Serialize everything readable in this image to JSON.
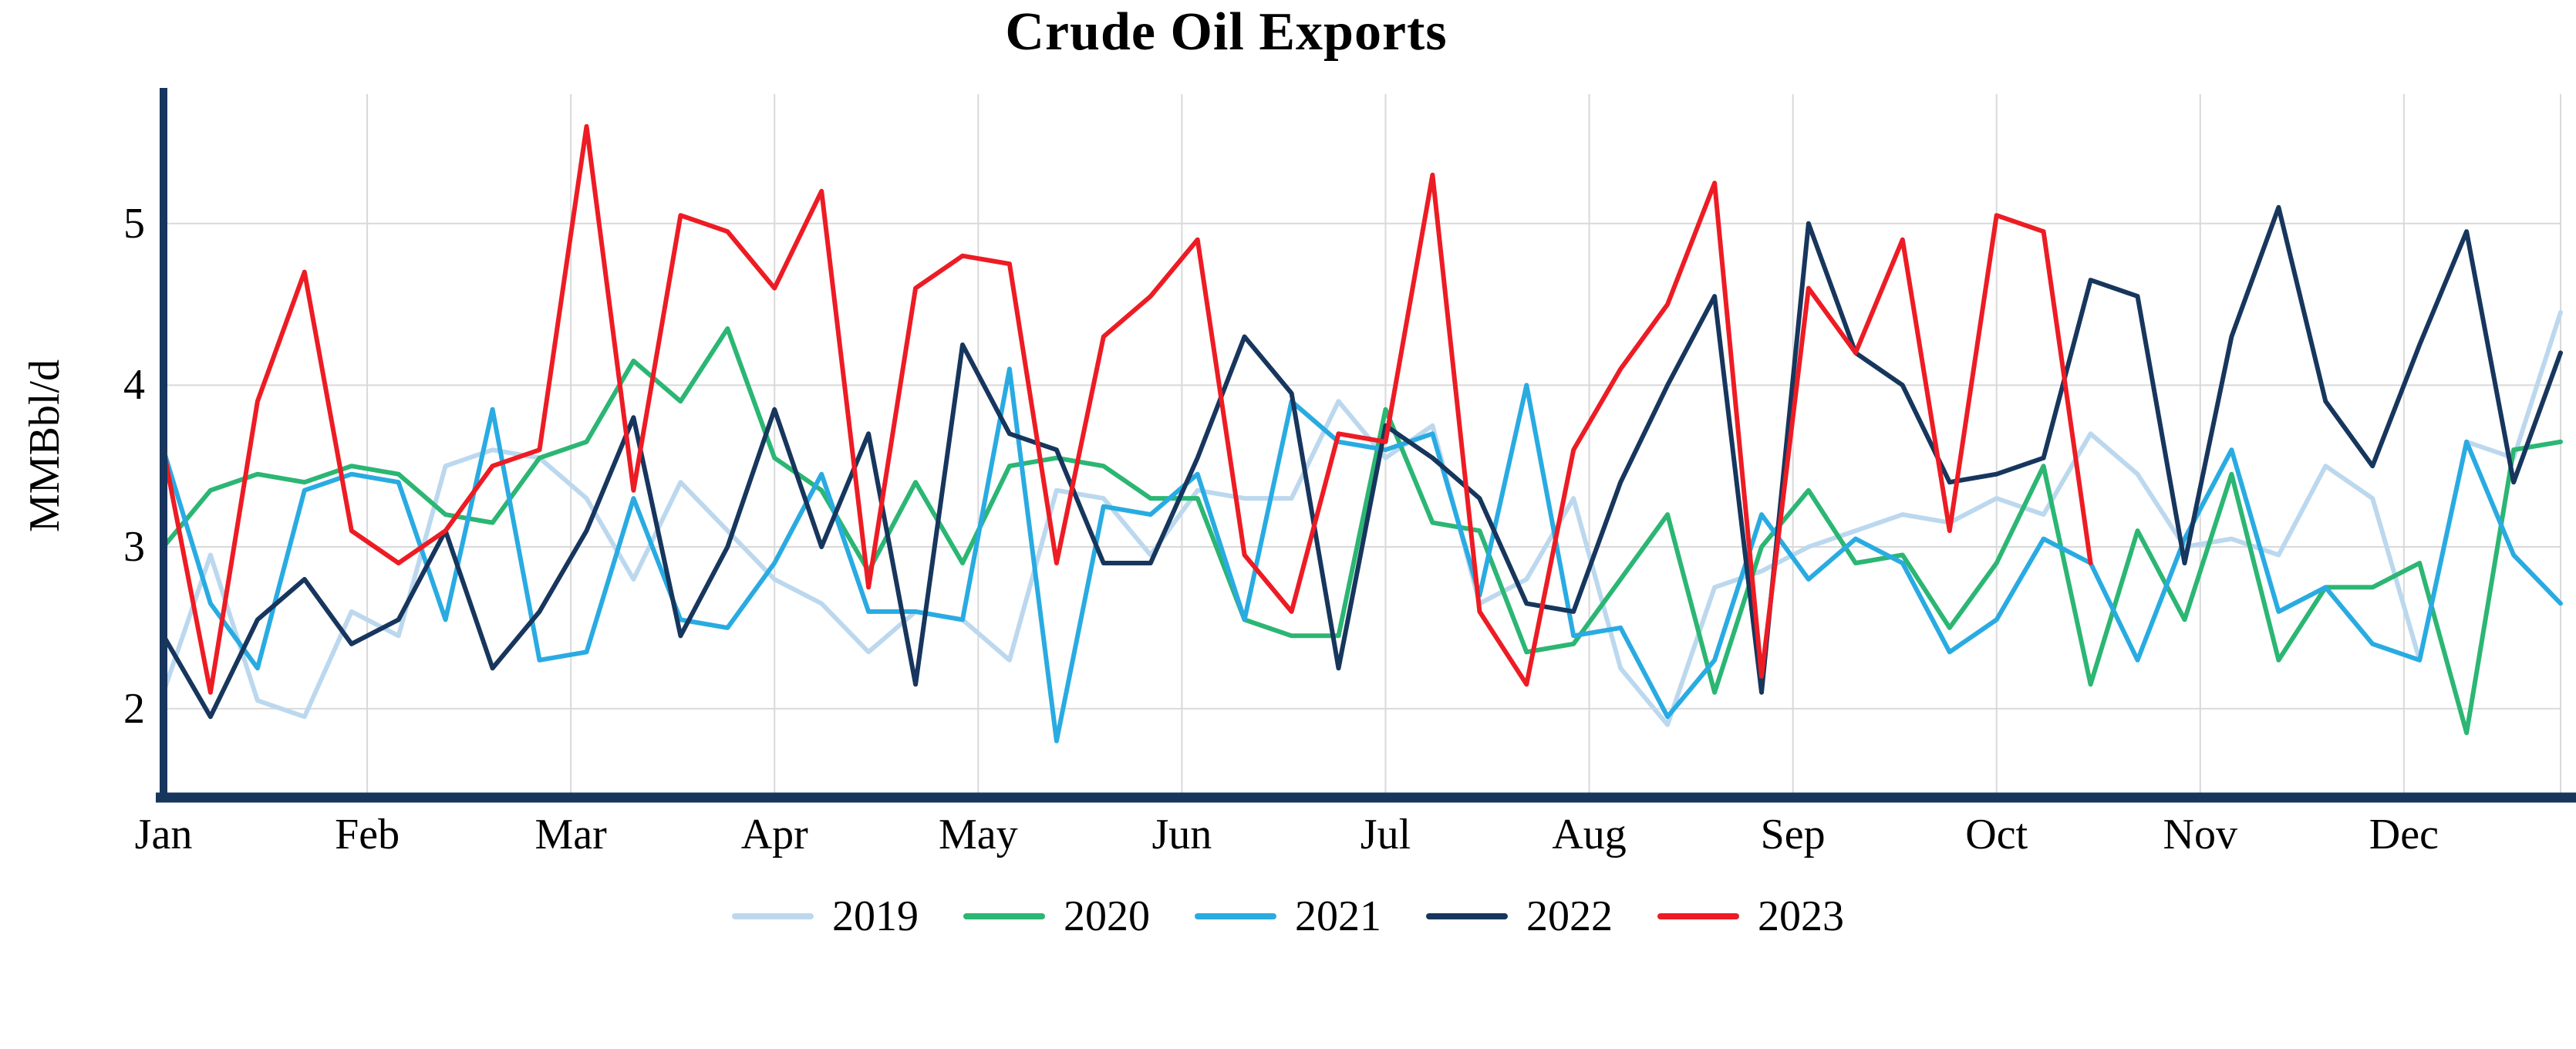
{
  "chart_data": {
    "type": "line",
    "title": "Crude Oil Exports",
    "ylabel": "MMBbl/d",
    "xlabel": "",
    "x_unit": "weekly",
    "n_weeks": 52,
    "x_ticklabels": [
      "Jan",
      "Feb",
      "Mar",
      "Apr",
      "May",
      "Jun",
      "Jul",
      "Aug",
      "Sep",
      "Oct",
      "Nov",
      "Dec"
    ],
    "yticks": [
      2,
      3,
      4,
      5
    ],
    "ylim": [
      1.45,
      5.8
    ],
    "grid": true,
    "legend_position": "bottom",
    "axis_color": "#17365d",
    "grid_color": "#d9d9d9",
    "series": [
      {
        "name": "2019",
        "color": "#bcd8ee",
        "values": [
          2.1,
          2.95,
          2.05,
          1.95,
          2.6,
          2.45,
          3.5,
          3.6,
          3.55,
          3.3,
          2.8,
          3.4,
          3.1,
          2.8,
          2.65,
          2.35,
          2.6,
          2.55,
          2.3,
          3.35,
          3.3,
          2.95,
          3.35,
          3.3,
          3.3,
          3.9,
          3.55,
          3.75,
          2.65,
          2.8,
          3.3,
          2.25,
          1.9,
          2.75,
          2.85,
          3.0,
          3.1,
          3.2,
          3.15,
          3.3,
          3.2,
          3.7,
          3.45,
          3.0,
          3.05,
          2.95,
          3.5,
          3.3,
          2.3,
          3.65,
          3.55,
          4.45
        ]
      },
      {
        "name": "2020",
        "color": "#2bb673",
        "values": [
          3.0,
          3.35,
          3.45,
          3.4,
          3.5,
          3.45,
          3.2,
          3.15,
          3.55,
          3.65,
          4.15,
          3.9,
          4.35,
          3.55,
          3.35,
          2.85,
          3.4,
          2.9,
          3.5,
          3.55,
          3.5,
          3.3,
          3.3,
          2.55,
          2.45,
          2.45,
          3.85,
          3.15,
          3.1,
          2.35,
          2.4,
          2.8,
          3.2,
          2.1,
          3.0,
          3.35,
          2.9,
          2.95,
          2.5,
          2.9,
          3.5,
          2.15,
          3.1,
          2.55,
          3.45,
          2.3,
          2.75,
          2.75,
          2.9,
          1.85,
          3.6,
          3.65
        ]
      },
      {
        "name": "2021",
        "color": "#29abe2",
        "values": [
          3.6,
          2.65,
          2.25,
          3.35,
          3.45,
          3.4,
          2.55,
          3.85,
          2.3,
          2.35,
          3.3,
          2.55,
          2.5,
          2.9,
          3.45,
          2.6,
          2.6,
          2.55,
          4.1,
          1.8,
          3.25,
          3.2,
          3.45,
          2.55,
          3.9,
          3.65,
          3.6,
          3.7,
          2.7,
          4.0,
          2.45,
          2.5,
          1.95,
          2.3,
          3.2,
          2.8,
          3.05,
          2.9,
          2.35,
          2.55,
          3.05,
          2.9,
          2.3,
          3.05,
          3.6,
          2.6,
          2.75,
          2.4,
          2.3,
          3.65,
          2.95,
          2.65
        ]
      },
      {
        "name": "2022",
        "color": "#17365d",
        "values": [
          2.45,
          1.95,
          2.55,
          2.8,
          2.4,
          2.55,
          3.1,
          2.25,
          2.6,
          3.1,
          3.8,
          2.45,
          3.0,
          3.85,
          3.0,
          3.7,
          2.15,
          4.25,
          3.7,
          3.6,
          2.9,
          2.9,
          3.55,
          4.3,
          3.95,
          2.25,
          3.75,
          3.55,
          3.3,
          2.65,
          2.6,
          3.4,
          4.0,
          4.55,
          2.1,
          5.0,
          4.2,
          4.0,
          3.4,
          3.45,
          3.55,
          4.65,
          4.55,
          2.9,
          4.3,
          5.1,
          3.9,
          3.5,
          4.25,
          4.95,
          3.4,
          4.2
        ]
      },
      {
        "name": "2023",
        "color": "#ed1c24",
        "values": [
          3.6,
          2.1,
          3.9,
          4.7,
          3.1,
          2.9,
          3.1,
          3.5,
          3.6,
          5.6,
          3.35,
          5.05,
          4.95,
          4.6,
          5.2,
          2.75,
          4.6,
          4.8,
          4.75,
          2.9,
          4.3,
          4.55,
          4.9,
          2.95,
          2.6,
          3.7,
          3.65,
          5.3,
          2.6,
          2.15,
          3.6,
          4.1,
          4.5,
          5.25,
          2.2,
          4.6,
          4.2,
          4.9,
          3.1,
          5.05,
          4.95,
          2.9
        ]
      }
    ]
  }
}
